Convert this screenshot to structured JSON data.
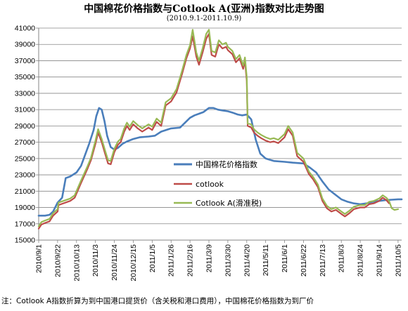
{
  "title": "中国棉花价格指数与Cotlook A(亚洲)指数对比走势图",
  "subtitle": "(2010.9.1-2011.10.9)",
  "footnote": "注：Cotlook A指数折算为到中国港口提货价（含关税和港口费用），中国棉花价格指数为到厂价",
  "colors": {
    "china_index": "#4a7ebb",
    "cotlook": "#be4b48",
    "cotlook_sliding": "#98b954",
    "grid": "#868686",
    "axis": "#868686"
  },
  "chart_data": {
    "type": "line",
    "title": "中国棉花价格指数与Cotlook A(亚洲)指数对比走势图",
    "subtitle": "(2010.9.1-2011.10.9)",
    "xlabel": "",
    "ylabel": "",
    "ylim": [
      15000,
      41000
    ],
    "yticks": [
      15000,
      17000,
      19000,
      21000,
      23000,
      25000,
      27000,
      29000,
      31000,
      33000,
      35000,
      37000,
      39000,
      41000
    ],
    "xticks": [
      "2010/9/1",
      "2010/9/22",
      "2010/10/13",
      "2010/11/3",
      "2010/11/24",
      "2010/12/15",
      "2011/1/5",
      "2011/1/26",
      "2011/2/16",
      "2011/3/9",
      "2011/3/30",
      "2011/4/20",
      "2011/5/11",
      "2011/6/1",
      "2011/6/22",
      "2011/7/13",
      "2011/8/3",
      "2011/8/24",
      "2011/9/14",
      "2011/10/5"
    ],
    "grid": "horizontal",
    "legend_position": "center-right",
    "series": [
      {
        "name": "中国棉花价格指数",
        "color": "#4a7ebb",
        "x": [
          "2010/9/1",
          "2010/9/8",
          "2010/9/13",
          "2010/9/17",
          "2010/9/22",
          "2010/9/27",
          "2010/10/1",
          "2010/10/6",
          "2010/10/13",
          "2010/10/18",
          "2010/10/22",
          "2010/10/27",
          "2010/11/1",
          "2010/11/4",
          "2010/11/7",
          "2010/11/10",
          "2010/11/13",
          "2010/11/16",
          "2010/11/20",
          "2010/11/24",
          "2010/11/28",
          "2010/12/3",
          "2010/12/8",
          "2010/12/15",
          "2010/12/22",
          "2011/1/1",
          "2011/1/8",
          "2011/1/15",
          "2011/1/26",
          "2011/2/5",
          "2011/2/16",
          "2011/2/21",
          "2011/2/26",
          "2011/3/3",
          "2011/3/9",
          "2011/3/14",
          "2011/3/19",
          "2011/3/24",
          "2011/3/30",
          "2011/4/5",
          "2011/4/10",
          "2011/4/15",
          "2011/4/20",
          "2011/4/25",
          "2011/4/30",
          "2011/5/5",
          "2011/5/11",
          "2011/5/20",
          "2011/6/1",
          "2011/6/10",
          "2011/6/22",
          "2011/6/29",
          "2011/7/6",
          "2011/7/13",
          "2011/7/20",
          "2011/7/27",
          "2011/8/3",
          "2011/8/10",
          "2011/8/17",
          "2011/8/24",
          "2011/8/31",
          "2011/9/7",
          "2011/9/14",
          "2011/9/21",
          "2011/9/28",
          "2011/10/5",
          "2011/10/9"
        ],
        "values": [
          18000,
          18000,
          18100,
          18500,
          19600,
          20200,
          22600,
          22800,
          23300,
          24100,
          25300,
          26800,
          28500,
          30200,
          31200,
          31000,
          29600,
          27800,
          26400,
          26100,
          26300,
          26800,
          27100,
          27400,
          27600,
          27700,
          27800,
          28300,
          28700,
          28800,
          30000,
          30300,
          30500,
          30700,
          31200,
          31200,
          31000,
          30900,
          30800,
          30600,
          30400,
          30300,
          30400,
          29800,
          27300,
          25600,
          25000,
          24700,
          24600,
          24500,
          24400,
          23900,
          23300,
          22200,
          21200,
          20600,
          20000,
          19700,
          19500,
          19400,
          19500,
          19700,
          19800,
          19900,
          19950,
          20000,
          20000
        ]
      },
      {
        "name": "cotlook",
        "color": "#be4b48",
        "x": [
          "2010/9/1",
          "2010/9/4",
          "2010/9/8",
          "2010/9/13",
          "2010/9/17",
          "2010/9/22",
          "2010/9/23",
          "2010/10/6",
          "2010/10/11",
          "2010/10/18",
          "2010/10/25",
          "2010/10/29",
          "2010/11/3",
          "2010/11/6",
          "2010/11/10",
          "2010/11/14",
          "2010/11/17",
          "2010/11/20",
          "2010/11/24",
          "2010/11/28",
          "2010/12/1",
          "2010/12/5",
          "2010/12/8",
          "2010/12/11",
          "2010/12/15",
          "2010/12/20",
          "2010/12/25",
          "2011/1/1",
          "2011/1/5",
          "2011/1/10",
          "2011/1/15",
          "2011/1/20",
          "2011/1/26",
          "2011/2/1",
          "2011/2/7",
          "2011/2/12",
          "2011/2/16",
          "2011/2/19",
          "2011/2/23",
          "2011/2/26",
          "2011/3/2",
          "2011/3/6",
          "2011/3/9",
          "2011/3/12",
          "2011/3/16",
          "2011/3/20",
          "2011/3/24",
          "2011/3/28",
          "2011/3/30",
          "2011/4/4",
          "2011/4/8",
          "2011/4/12",
          "2011/4/16",
          "2011/4/18",
          "2011/4/20",
          "2011/4/21",
          "2011/4/25",
          "2011/4/28",
          "2011/5/2",
          "2011/5/6",
          "2011/5/11",
          "2011/5/16",
          "2011/5/20",
          "2011/5/25",
          "2011/6/1",
          "2011/6/5",
          "2011/6/10",
          "2011/6/15",
          "2011/6/22",
          "2011/6/28",
          "2011/7/3",
          "2011/7/8",
          "2011/7/13",
          "2011/7/18",
          "2011/7/23",
          "2011/7/28",
          "2011/8/3",
          "2011/8/7",
          "2011/8/12",
          "2011/8/17",
          "2011/8/24",
          "2011/8/29",
          "2011/9/3",
          "2011/9/8",
          "2011/9/14",
          "2011/9/18",
          "2011/9/22",
          "2011/9/25"
        ],
        "values": [
          16400,
          16900,
          17100,
          17300,
          18000,
          18500,
          19300,
          19800,
          20200,
          22000,
          23700,
          24800,
          26800,
          28200,
          27000,
          25500,
          24400,
          24300,
          25800,
          26700,
          27000,
          28300,
          29000,
          28500,
          29200,
          28700,
          28300,
          28800,
          28500,
          29500,
          29000,
          31500,
          32000,
          33100,
          35300,
          37300,
          38500,
          40000,
          37500,
          36500,
          38000,
          39700,
          40300,
          37700,
          37500,
          39000,
          38500,
          38700,
          38300,
          37800,
          36800,
          37300,
          36000,
          37000,
          34500,
          29000,
          28800,
          28200,
          27800,
          27500,
          27200,
          27000,
          27100,
          26900,
          27600,
          28600,
          27800,
          25300,
          24600,
          23100,
          22400,
          21500,
          19800,
          18900,
          18500,
          18700,
          18200,
          17900,
          18300,
          18800,
          19000,
          19000,
          19400,
          19500,
          19800,
          20200,
          19900,
          19500
        ]
      },
      {
        "name": "Cotlook A(滑准税)",
        "color": "#98b954",
        "x": [
          "2010/9/1",
          "2010/9/4",
          "2010/9/8",
          "2010/9/13",
          "2010/9/17",
          "2010/9/22",
          "2010/9/23",
          "2010/10/6",
          "2010/10/11",
          "2010/10/18",
          "2010/10/25",
          "2010/10/29",
          "2010/11/3",
          "2010/11/6",
          "2010/11/10",
          "2010/11/14",
          "2010/11/17",
          "2010/11/20",
          "2010/11/24",
          "2010/11/28",
          "2010/12/1",
          "2010/12/5",
          "2010/12/8",
          "2010/12/11",
          "2010/12/15",
          "2010/12/20",
          "2010/12/25",
          "2011/1/1",
          "2011/1/5",
          "2011/1/10",
          "2011/1/15",
          "2011/1/20",
          "2011/1/26",
          "2011/2/1",
          "2011/2/7",
          "2011/2/12",
          "2011/2/16",
          "2011/2/19",
          "2011/2/23",
          "2011/2/26",
          "2011/3/2",
          "2011/3/6",
          "2011/3/9",
          "2011/3/12",
          "2011/3/16",
          "2011/3/20",
          "2011/3/24",
          "2011/3/28",
          "2011/3/30",
          "2011/4/4",
          "2011/4/8",
          "2011/4/12",
          "2011/4/16",
          "2011/4/18",
          "2011/4/20",
          "2011/4/21",
          "2011/4/25",
          "2011/4/28",
          "2011/5/2",
          "2011/5/6",
          "2011/5/11",
          "2011/5/16",
          "2011/5/20",
          "2011/5/25",
          "2011/6/1",
          "2011/6/5",
          "2011/6/10",
          "2011/6/15",
          "2011/6/22",
          "2011/6/28",
          "2011/7/3",
          "2011/7/8",
          "2011/7/13",
          "2011/7/18",
          "2011/7/23",
          "2011/7/28",
          "2011/8/3",
          "2011/8/7",
          "2011/8/12",
          "2011/8/17",
          "2011/8/24",
          "2011/8/29",
          "2011/9/3",
          "2011/9/8",
          "2011/9/14",
          "2011/9/18",
          "2011/9/22",
          "2011/9/25",
          "2011/9/28",
          "2011/10/1",
          "2011/10/5"
        ],
        "values": [
          16700,
          17200,
          17400,
          17600,
          18300,
          18800,
          19600,
          20100,
          20500,
          22300,
          24000,
          25100,
          27200,
          28600,
          27400,
          25900,
          24800,
          24700,
          26200,
          27100,
          27400,
          28700,
          29400,
          28900,
          29600,
          29100,
          28700,
          29200,
          28900,
          29900,
          29400,
          31900,
          32400,
          33500,
          35700,
          37700,
          38900,
          40800,
          38000,
          37000,
          38500,
          40300,
          40800,
          38200,
          38000,
          39500,
          39000,
          39200,
          38700,
          38200,
          37200,
          37700,
          36400,
          37400,
          35000,
          29300,
          29200,
          28600,
          28200,
          27900,
          27600,
          27400,
          27500,
          27300,
          28000,
          29000,
          28200,
          25700,
          25000,
          23400,
          22700,
          21800,
          20100,
          19200,
          18800,
          19000,
          18500,
          18200,
          18600,
          19100,
          19300,
          19300,
          19700,
          19800,
          20100,
          20500,
          20200,
          19800,
          18900,
          18700,
          18800
        ]
      }
    ]
  }
}
